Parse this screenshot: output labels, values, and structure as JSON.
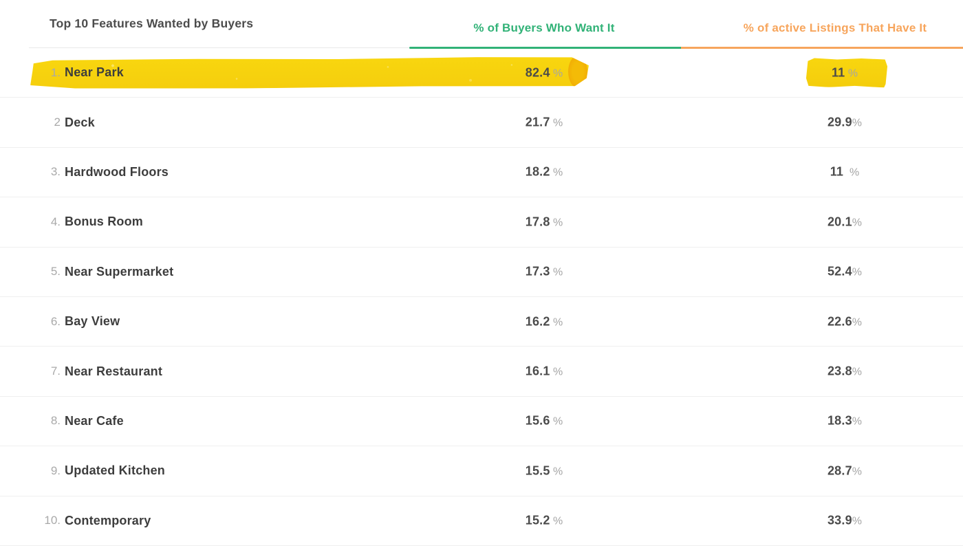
{
  "table": {
    "title": "Top 10 Features Wanted by Buyers",
    "col_buyers": "% of Buyers Who Want It",
    "col_listings": "% of active Listings That Have It",
    "rows": [
      {
        "num": "1.",
        "label": "Near Park",
        "buyers": "82.4",
        "buyers_pct": " %",
        "listings": "11",
        "listings_pct": " %",
        "highlight": true
      },
      {
        "num": "2",
        "label": "Deck",
        "buyers": "21.7",
        "buyers_pct": " %",
        "listings": "29.9",
        "listings_pct": "%",
        "highlight": false
      },
      {
        "num": "3.",
        "label": "Hardwood Floors",
        "buyers": "18.2",
        "buyers_pct": " %",
        "listings": "11",
        "listings_pct": "  %",
        "highlight": false
      },
      {
        "num": "4.",
        "label": "Bonus Room",
        "buyers": "17.8",
        "buyers_pct": " %",
        "listings": "20.1",
        "listings_pct": "%",
        "highlight": false
      },
      {
        "num": "5.",
        "label": "Near Supermarket",
        "buyers": "17.3",
        "buyers_pct": " %",
        "listings": "52.4",
        "listings_pct": "%",
        "highlight": false
      },
      {
        "num": "6.",
        "label": "Bay View",
        "buyers": "16.2",
        "buyers_pct": " %",
        "listings": "22.6",
        "listings_pct": "%",
        "highlight": false
      },
      {
        "num": "7.",
        "label": "Near Restaurant",
        "buyers": "16.1",
        "buyers_pct": " %",
        "listings": "23.8",
        "listings_pct": "%",
        "highlight": false
      },
      {
        "num": "8.",
        "label": "Near Cafe",
        "buyers": "15.6",
        "buyers_pct": " %",
        "listings": "18.3",
        "listings_pct": "%",
        "highlight": false
      },
      {
        "num": "9.",
        "label": "Updated Kitchen",
        "buyers": "15.5",
        "buyers_pct": " %",
        "listings": "28.7",
        "listings_pct": "%",
        "highlight": false
      },
      {
        "num": "10.",
        "label": "Contemporary",
        "buyers": "15.2",
        "buyers_pct": " %",
        "listings": "33.9",
        "listings_pct": "%",
        "highlight": false
      }
    ]
  },
  "colors": {
    "accent_green": "#31b277",
    "accent_orange": "#f7a55c",
    "highlight_yellow": "#f7d40e",
    "highlight_tip": "#f2ae05"
  },
  "annotations": {
    "highlighted_row": "Near Park",
    "highlighted_values": [
      "82.4 %",
      "11 %"
    ]
  },
  "chart_data": {
    "type": "table",
    "title": "Top 10 Features Wanted by Buyers",
    "columns": [
      "Top 10 Features Wanted by Buyers",
      "% of Buyers Who Want It",
      "% of active Listings That Have It"
    ],
    "categories": [
      "Near Park",
      "Deck",
      "Hardwood Floors",
      "Bonus Room",
      "Near Supermarket",
      "Bay View",
      "Near Restaurant",
      "Near Cafe",
      "Updated Kitchen",
      "Contemporary"
    ],
    "series": [
      {
        "name": "% of Buyers Who Want It",
        "values": [
          82.4,
          21.7,
          18.2,
          17.8,
          17.3,
          16.2,
          16.1,
          15.6,
          15.5,
          15.2
        ]
      },
      {
        "name": "% of active Listings That Have It",
        "values": [
          11,
          29.9,
          11,
          20.1,
          52.4,
          22.6,
          23.8,
          18.3,
          28.7,
          33.9
        ]
      }
    ],
    "annotations": [
      "Row 1 'Near Park' is emphasized with a yellow highlighter stroke",
      "The listings value '11 %' of row 1 has a separate yellow highlight patch"
    ]
  }
}
